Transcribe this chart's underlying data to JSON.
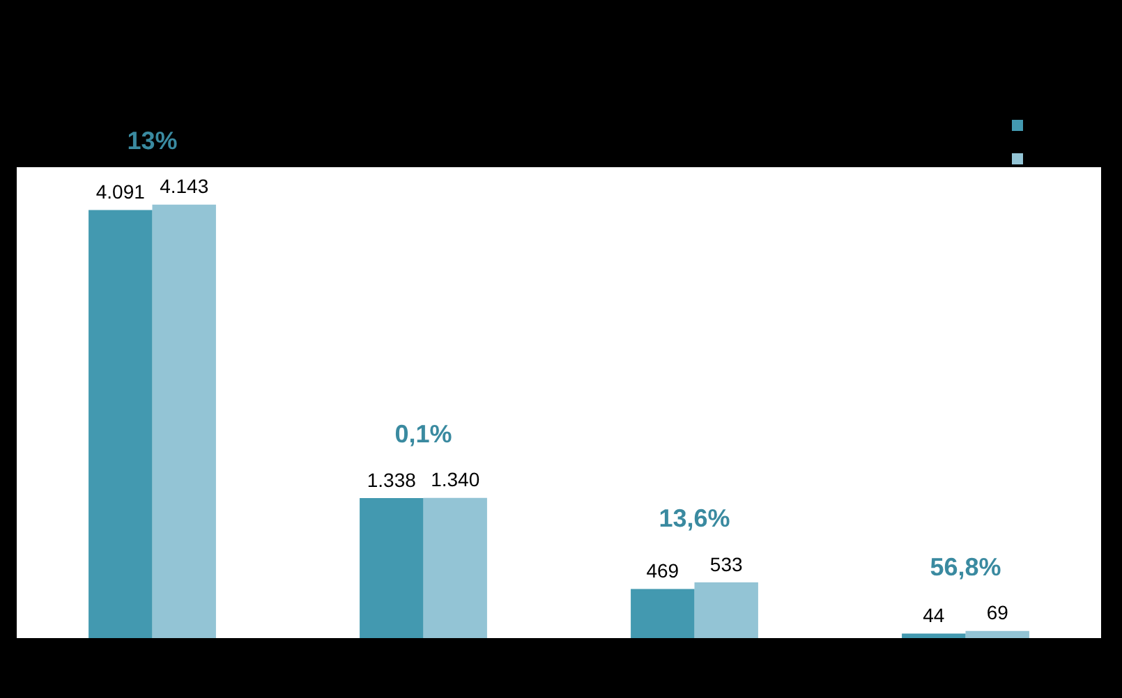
{
  "chart_data": {
    "type": "bar",
    "categories": [
      null,
      null,
      null,
      null
    ],
    "series": [
      {
        "color": "#4399b0",
        "values": [
          4091,
          1338,
          469,
          44
        ],
        "value_labels": [
          "4.091",
          "1.338",
          "469",
          "44"
        ]
      },
      {
        "color": "#93c4d5",
        "values": [
          4143,
          1340,
          533,
          69
        ],
        "value_labels": [
          "4.143",
          "1.340",
          "533",
          "69"
        ]
      }
    ],
    "annotations": [
      "13%",
      "0,1%",
      "13,6%",
      "56,8%"
    ]
  }
}
